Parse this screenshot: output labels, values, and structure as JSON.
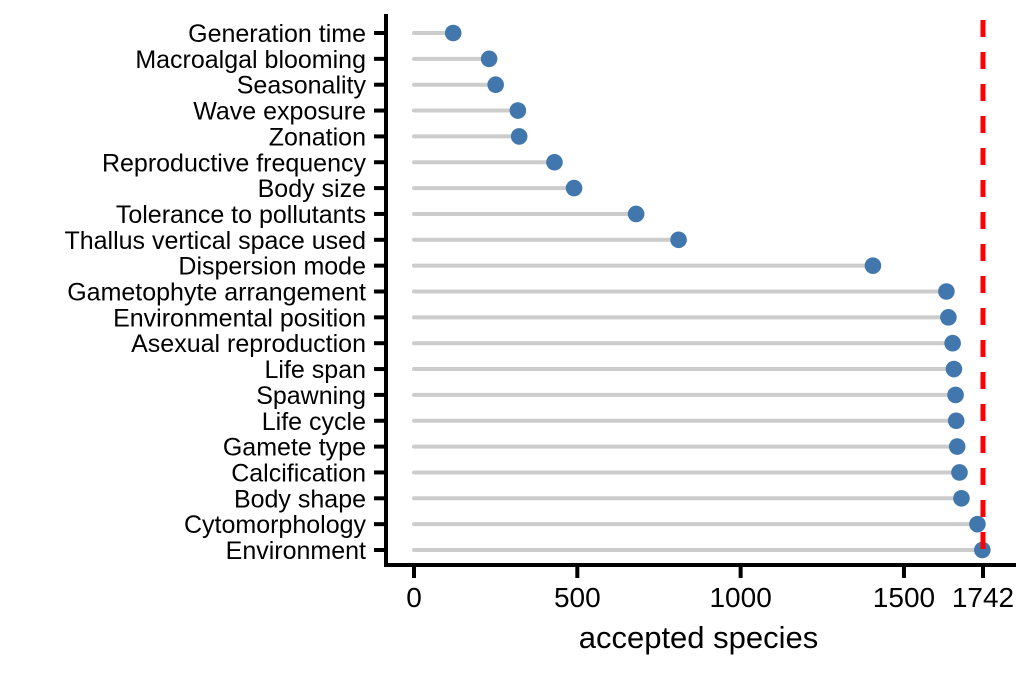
{
  "chart_data": {
    "type": "scatter",
    "variant": "lollipop-dot-plot",
    "title": "",
    "xlabel": "accepted species",
    "ylabel": "",
    "categories": [
      "Generation time",
      "Macroalgal blooming",
      "Seasonality",
      "Wave exposure",
      "Zonation",
      "Reproductive frequency",
      "Body size",
      "Tolerance to pollutants",
      "Thallus vertical space used",
      "Dispersion mode",
      "Gametophyte arrangement",
      "Environmental position",
      "Asexual reproduction",
      "Life span",
      "Spawning",
      "Life cycle",
      "Gamete type",
      "Calcification",
      "Body shape",
      "Cytomorphology",
      "Environment"
    ],
    "values": [
      120,
      230,
      250,
      318,
      322,
      430,
      490,
      680,
      810,
      1405,
      1630,
      1636,
      1649,
      1653,
      1658,
      1660,
      1663,
      1670,
      1676,
      1725,
      1740
    ],
    "xlim": [
      0,
      1840
    ],
    "xtick_values": [
      0,
      500,
      1000,
      1500,
      1742
    ],
    "xtick_labels": [
      "0",
      "500",
      "1000",
      "1500",
      "1742"
    ],
    "reference_line": {
      "value": 1742,
      "style": "dashed",
      "color": "#ff0000"
    },
    "colors": {
      "dot": "#4177ad",
      "stem": "#cccccc",
      "axis": "#000000",
      "reference": "#ff0000"
    },
    "grid": false,
    "legend": false
  }
}
